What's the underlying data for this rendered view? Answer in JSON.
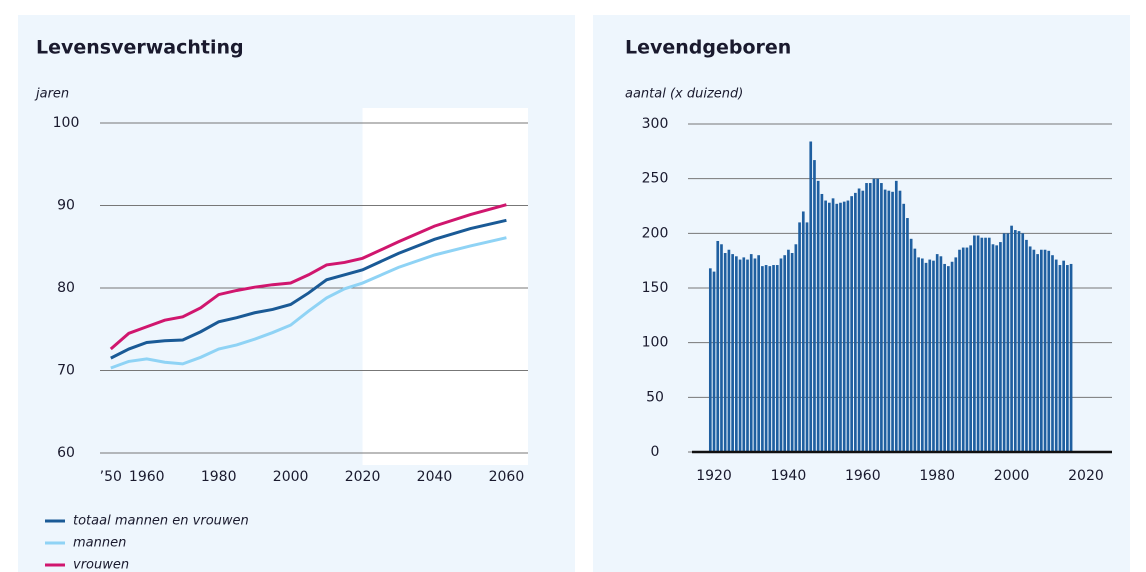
{
  "chart_data": [
    {
      "type": "line",
      "title": "Levensverwachting",
      "y_label": "jaren",
      "x": [
        1950,
        1955,
        1960,
        1965,
        1970,
        1975,
        1980,
        1985,
        1990,
        1995,
        2000,
        2005,
        2010,
        2015,
        2020,
        2030,
        2040,
        2050,
        2060
      ],
      "series": [
        {
          "name": "totaal mannen en vrouwen",
          "color": "#1a5a96",
          "values": [
            71.5,
            72.6,
            73.4,
            73.6,
            73.7,
            74.7,
            75.9,
            76.4,
            77.0,
            77.4,
            78.0,
            79.4,
            81.0,
            81.6,
            82.2,
            84.2,
            85.9,
            87.2,
            88.2
          ]
        },
        {
          "name": "mannen",
          "color": "#8fd3f5",
          "values": [
            70.3,
            71.1,
            71.4,
            71.0,
            70.8,
            71.6,
            72.6,
            73.1,
            73.8,
            74.6,
            75.5,
            77.2,
            78.8,
            79.9,
            80.6,
            82.5,
            84.0,
            85.1,
            86.1
          ]
        },
        {
          "name": "vrouwen",
          "color": "#d0166e",
          "values": [
            72.6,
            74.5,
            75.3,
            76.1,
            76.5,
            77.6,
            79.2,
            79.7,
            80.1,
            80.4,
            80.6,
            81.6,
            82.8,
            83.1,
            83.6,
            85.6,
            87.5,
            88.9,
            90.1
          ]
        }
      ],
      "xlim": [
        1947,
        2066
      ],
      "xticks": [
        {
          "value": 1950,
          "label": "’50"
        },
        1960,
        1980,
        2000,
        2020,
        2040,
        2060
      ],
      "ylim": [
        60,
        100
      ],
      "yticks": [
        60,
        70,
        80,
        90,
        100
      ],
      "grid": true,
      "projection_start": 2020,
      "legend": "bottom"
    },
    {
      "type": "bar",
      "title": "Levendgeboren",
      "y_label": "aantal (x duizend)",
      "color": "#1f5fa0",
      "x": [
        1919,
        1920,
        1921,
        1922,
        1923,
        1924,
        1925,
        1926,
        1927,
        1928,
        1929,
        1930,
        1931,
        1932,
        1933,
        1934,
        1935,
        1936,
        1937,
        1938,
        1939,
        1940,
        1941,
        1942,
        1943,
        1944,
        1945,
        1946,
        1947,
        1948,
        1949,
        1950,
        1951,
        1952,
        1953,
        1954,
        1955,
        1956,
        1957,
        1958,
        1959,
        1960,
        1961,
        1962,
        1963,
        1964,
        1965,
        1966,
        1967,
        1968,
        1969,
        1970,
        1971,
        1972,
        1973,
        1974,
        1975,
        1976,
        1977,
        1978,
        1979,
        1980,
        1981,
        1982,
        1983,
        1984,
        1985,
        1986,
        1987,
        1988,
        1989,
        1990,
        1991,
        1992,
        1993,
        1994,
        1995,
        1996,
        1997,
        1998,
        1999,
        2000,
        2001,
        2002,
        2003,
        2004,
        2005,
        2006,
        2007,
        2008,
        2009,
        2010,
        2011,
        2012,
        2013,
        2014,
        2015,
        2016
      ],
      "values": [
        168,
        165,
        193,
        190,
        182,
        185,
        181,
        179,
        176,
        178,
        176,
        181,
        177,
        180,
        170,
        171,
        170,
        171,
        171,
        177,
        180,
        185,
        182,
        190,
        210,
        220,
        210,
        284,
        267,
        248,
        236,
        230,
        228,
        232,
        227,
        228,
        229,
        230,
        234,
        237,
        241,
        239,
        246,
        246,
        250,
        250,
        246,
        240,
        239,
        238,
        248,
        239,
        227,
        214,
        195,
        186,
        178,
        177,
        173,
        176,
        175,
        181,
        179,
        172,
        170,
        174,
        178,
        185,
        187,
        187,
        189,
        198,
        198,
        196,
        196,
        196,
        190,
        189,
        192,
        200,
        200,
        207,
        203,
        202,
        200,
        194,
        188,
        185,
        181,
        185,
        185,
        184,
        180,
        176,
        171,
        175,
        171,
        172
      ],
      "xlim": [
        1913,
        2027
      ],
      "xticks": [
        1920,
        1940,
        1960,
        1980,
        2000,
        2020
      ],
      "ylim": [
        0,
        300
      ],
      "yticks": [
        0,
        50,
        100,
        150,
        200,
        250,
        300
      ],
      "grid": true
    }
  ]
}
